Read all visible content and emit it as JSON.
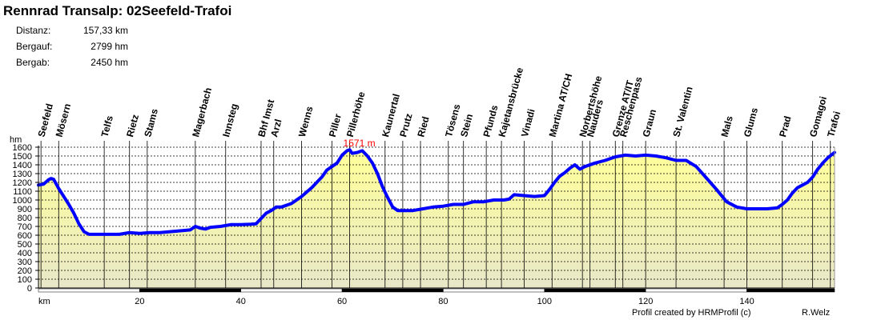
{
  "header": {
    "title": "Rennrad Transalp: 02Seefeld-Trafoi",
    "stats": [
      {
        "label": "Distanz:",
        "value": "157,33 km"
      },
      {
        "label": "Bergauf:",
        "value": "2799 hm"
      },
      {
        "label": "Bergab:",
        "value": "2450 hm"
      }
    ]
  },
  "footer": {
    "credit": "Profil created by HRMProfil (c)",
    "author": "R.Welz"
  },
  "colors": {
    "line": "#0000ff",
    "fill_top": "#ffff99",
    "fill_bottom": "#e8e8c8",
    "grid": "#000000",
    "peak_label": "#ff0000"
  },
  "chart_data": {
    "type": "area",
    "title": "Rennrad Transalp: 02Seefeld-Trafoi",
    "xlabel": "km",
    "ylabel": "hm",
    "xlim": [
      0,
      157.33
    ],
    "ylim": [
      0,
      1600
    ],
    "x_ticks": [
      "20",
      "40",
      "60",
      "80",
      "100",
      "120",
      "140"
    ],
    "x_tick_values": [
      20,
      40,
      60,
      80,
      100,
      120,
      140
    ],
    "y_ticks": [
      "0",
      "100",
      "200",
      "300",
      "400",
      "500",
      "600",
      "700",
      "800",
      "900",
      "1000",
      "1100",
      "1200",
      "1300",
      "1400",
      "1500",
      "1600"
    ],
    "grid": true,
    "peak_annotation": {
      "text": "1571 m",
      "x": 61.5,
      "y": 1571
    },
    "waypoints": [
      {
        "name": "Seefeld",
        "x": 0.5
      },
      {
        "name": "Mösern",
        "x": 4
      },
      {
        "name": "Telfs",
        "x": 13
      },
      {
        "name": "Rietz",
        "x": 18
      },
      {
        "name": "Stams",
        "x": 21.5
      },
      {
        "name": "Magerbach",
        "x": 31
      },
      {
        "name": "Innsteg",
        "x": 37
      },
      {
        "name": "Bhf Imst",
        "x": 44
      },
      {
        "name": "Arzl",
        "x": 46.5
      },
      {
        "name": "Wenns",
        "x": 52
      },
      {
        "name": "Piller",
        "x": 58
      },
      {
        "name": "Pillerhöhe",
        "x": 61.5
      },
      {
        "name": "Kaunertal",
        "x": 68.5
      },
      {
        "name": "Prutz",
        "x": 72
      },
      {
        "name": "Ried",
        "x": 75.5
      },
      {
        "name": "Tösens",
        "x": 81
      },
      {
        "name": "Stein",
        "x": 84
      },
      {
        "name": "Pfunds",
        "x": 88.5
      },
      {
        "name": "Kajetansbrücke",
        "x": 91.5
      },
      {
        "name": "Vinadi",
        "x": 96
      },
      {
        "name": "Martina AT/CH",
        "x": 101.5
      },
      {
        "name": "Norbertshöhe",
        "x": 107.5
      },
      {
        "name": "Nauders",
        "x": 109
      },
      {
        "name": "Grenze AT/IT",
        "x": 114
      },
      {
        "name": "Reschenpass",
        "x": 115.5
      },
      {
        "name": "Graun",
        "x": 120
      },
      {
        "name": "St. Valentin",
        "x": 126
      },
      {
        "name": "Mals",
        "x": 135.5
      },
      {
        "name": "Glums",
        "x": 140
      },
      {
        "name": "Prad",
        "x": 147
      },
      {
        "name": "Gomagoi",
        "x": 153
      },
      {
        "name": "Trafoi",
        "x": 156.5
      }
    ],
    "series": [
      {
        "x": [
          0,
          1,
          2,
          2.5,
          3,
          4,
          5,
          6,
          7,
          8,
          9,
          10,
          11,
          12,
          14,
          16,
          18,
          20,
          22,
          24,
          26,
          28,
          30,
          31,
          32,
          33,
          34,
          36,
          38,
          40,
          42,
          43,
          44,
          45,
          46,
          47,
          48,
          50,
          52,
          54,
          55,
          56,
          57,
          58,
          59,
          60,
          61,
          61.5,
          62,
          63,
          64,
          65,
          66,
          67,
          68,
          69,
          70,
          71,
          72,
          74,
          76,
          78,
          80,
          82,
          84,
          86,
          88,
          90,
          92,
          93,
          94,
          96,
          98,
          100,
          101,
          102,
          103,
          104,
          105,
          106,
          107,
          108,
          110,
          112,
          114,
          116,
          118,
          120,
          122,
          124,
          126,
          128,
          130,
          132,
          134,
          136,
          138,
          140,
          142,
          144,
          146,
          147,
          148,
          149,
          150,
          151,
          152,
          153,
          154,
          155,
          156,
          157.33
        ],
        "y": [
          1170,
          1180,
          1230,
          1245,
          1235,
          1130,
          1040,
          950,
          850,
          730,
          640,
          610,
          610,
          610,
          610,
          610,
          630,
          620,
          630,
          630,
          640,
          650,
          660,
          700,
          680,
          670,
          690,
          700,
          720,
          720,
          725,
          730,
          790,
          850,
          880,
          920,
          920,
          960,
          1040,
          1140,
          1200,
          1260,
          1340,
          1380,
          1420,
          1510,
          1560,
          1571,
          1530,
          1540,
          1560,
          1500,
          1420,
          1300,
          1150,
          1030,
          920,
          880,
          880,
          880,
          900,
          920,
          930,
          950,
          950,
          980,
          980,
          1000,
          1000,
          1010,
          1060,
          1050,
          1040,
          1050,
          1120,
          1200,
          1270,
          1310,
          1360,
          1400,
          1350,
          1380,
          1420,
          1450,
          1490,
          1510,
          1500,
          1510,
          1500,
          1480,
          1450,
          1450,
          1380,
          1250,
          1120,
          980,
          920,
          900,
          900,
          900,
          910,
          950,
          1000,
          1080,
          1140,
          1170,
          1200,
          1260,
          1350,
          1420,
          1480,
          1540
        ]
      }
    ]
  }
}
